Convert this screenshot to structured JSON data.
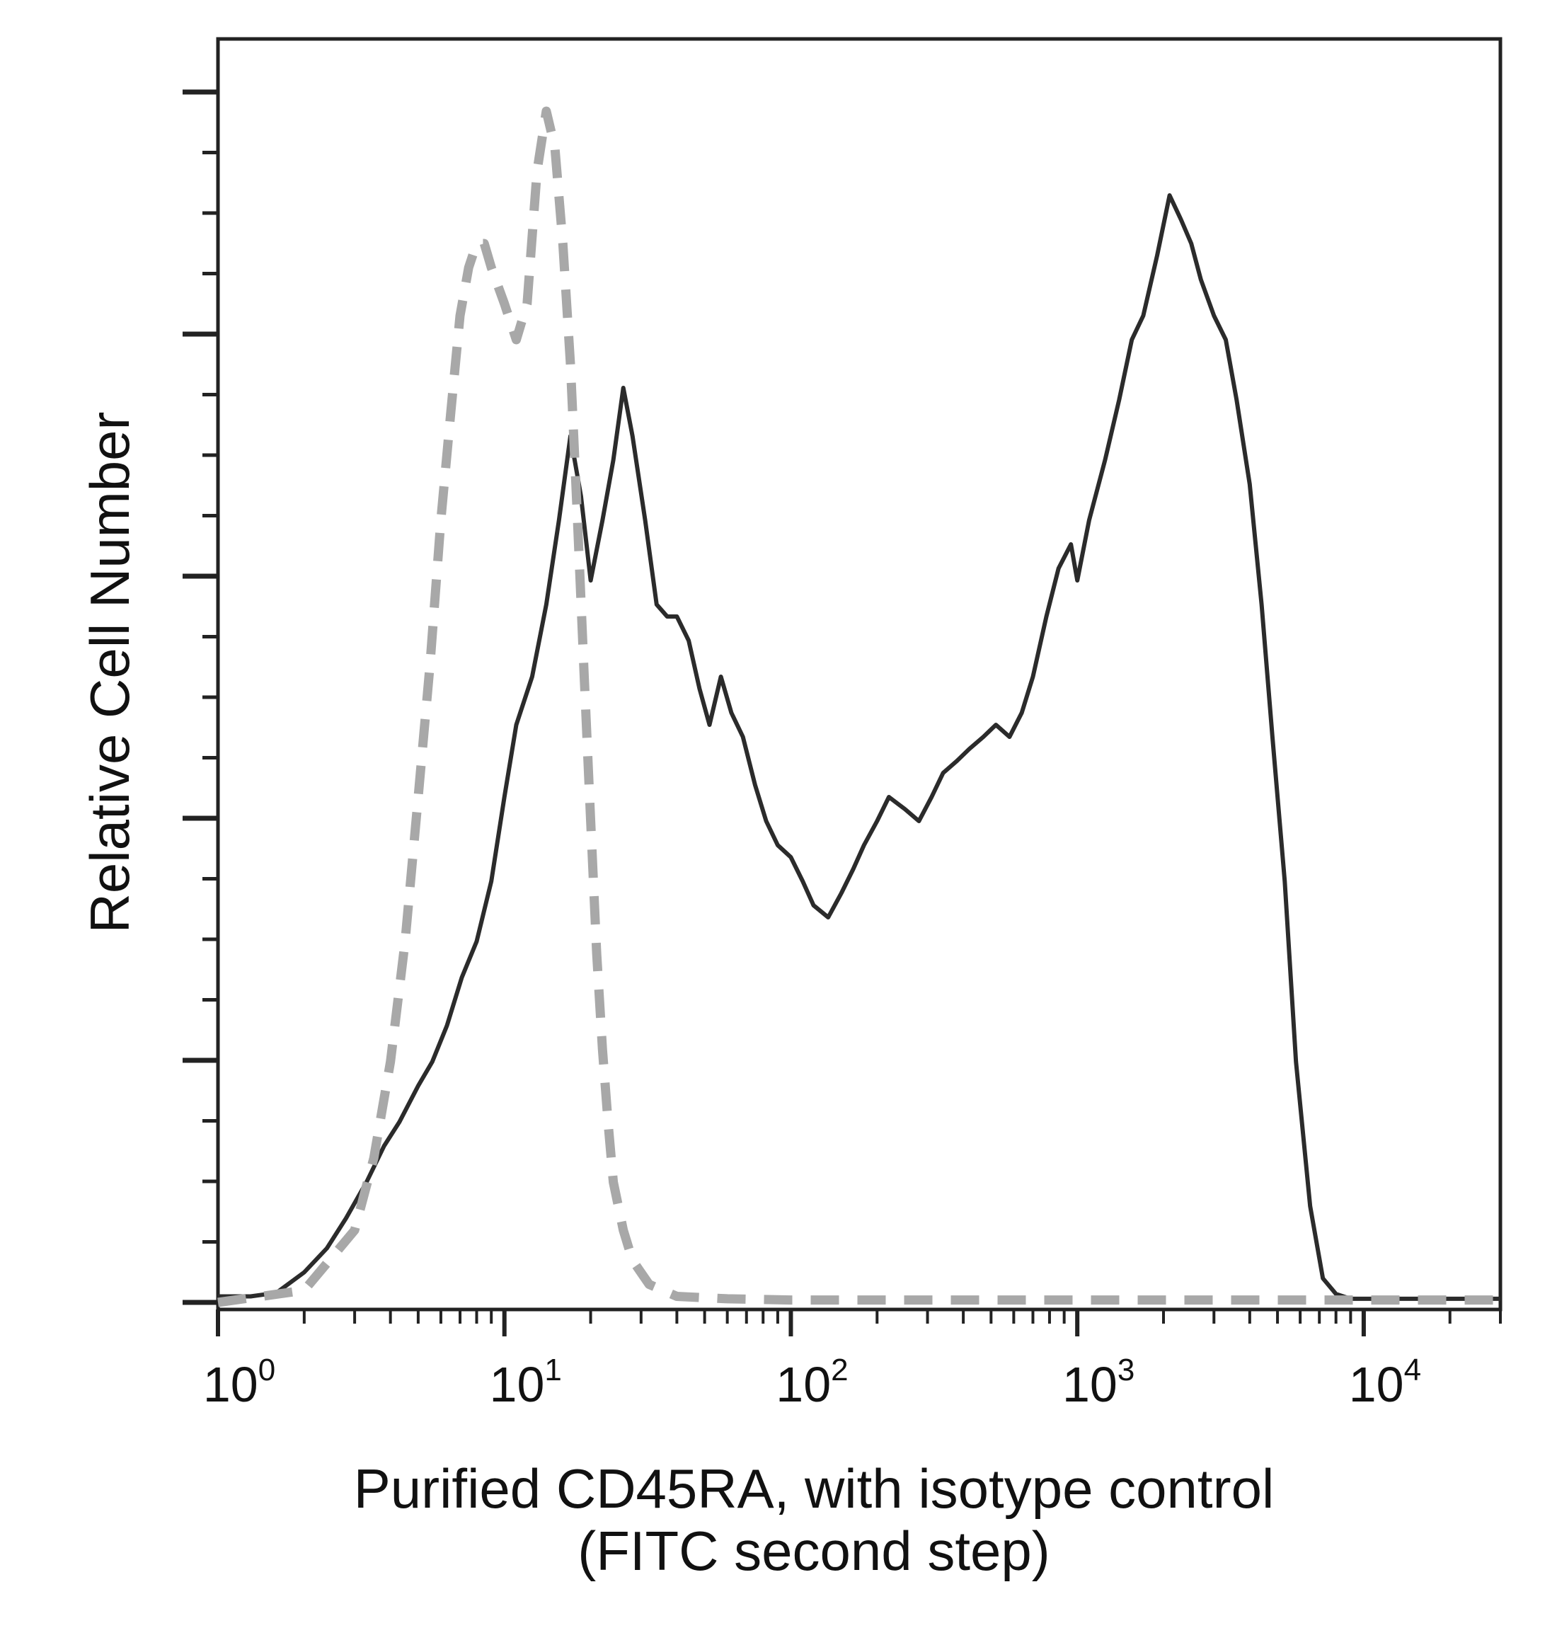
{
  "chart_data": {
    "type": "line",
    "title": "",
    "xlabel_line1": "Purified CD45RA, with isotype control",
    "xlabel_line2": "(FITC second step)",
    "ylabel": "Relative Cell Number",
    "x_scale": "log",
    "xlim": [
      1,
      30000
    ],
    "ylim": [
      0,
      100
    ],
    "x_ticks": [
      {
        "base": "10",
        "exp": "0",
        "value": 1
      },
      {
        "base": "10",
        "exp": "1",
        "value": 10
      },
      {
        "base": "10",
        "exp": "2",
        "value": 100
      },
      {
        "base": "10",
        "exp": "3",
        "value": 1000
      },
      {
        "base": "10",
        "exp": "4",
        "value": 10000
      }
    ],
    "y_tick_labels_shown": false,
    "grid": false,
    "legend": "none",
    "colors": {
      "sample": "#2b2b2b",
      "isotype": "#a8a8a8",
      "axis": "#222222"
    },
    "series": [
      {
        "style": "solid",
        "x": [
          1.0,
          1.3,
          1.6,
          2.0,
          2.4,
          2.8,
          3.3,
          3.8,
          4.3,
          5.0,
          5.6,
          6.3,
          7.1,
          8.0,
          9.0,
          10,
          11,
          12.5,
          14,
          15.5,
          17,
          18.5,
          20,
          22,
          24,
          26,
          28,
          31,
          34,
          37,
          40,
          44,
          48,
          52,
          57,
          62,
          68,
          75,
          82,
          90,
          100,
          110,
          120,
          135,
          150,
          165,
          180,
          200,
          220,
          250,
          280,
          310,
          340,
          380,
          420,
          470,
          520,
          580,
          640,
          700,
          780,
          860,
          950,
          1000,
          1100,
          1250,
          1400,
          1550,
          1700,
          1900,
          2100,
          2300,
          2500,
          2700,
          3000,
          3300,
          3600,
          4000,
          4400,
          4800,
          5300,
          5800,
          6500,
          7200,
          8000,
          9000,
          10000,
          15000,
          22000,
          30000
        ],
        "values": [
          0.5,
          0.5,
          0.8,
          2.5,
          4.5,
          7,
          10,
          13,
          15,
          18,
          20,
          23,
          27,
          30,
          35,
          42,
          48,
          52,
          58,
          65,
          72,
          67,
          60,
          65,
          70,
          76,
          72,
          65,
          58,
          57,
          57,
          55,
          51,
          48,
          52,
          49,
          47,
          43,
          40,
          38,
          37,
          35,
          33,
          32,
          34,
          36,
          38,
          40,
          42,
          41,
          40,
          42,
          44,
          45,
          46,
          47,
          48,
          47,
          49,
          52,
          57,
          61,
          63,
          60,
          65,
          70,
          75,
          80,
          82,
          87,
          92,
          90,
          88,
          85,
          82,
          80,
          75,
          68,
          58,
          47,
          35,
          20,
          8,
          2,
          0.7,
          0.3,
          0.3,
          0.3,
          0.3,
          0.3
        ]
      },
      {
        "style": "dashed",
        "x": [
          1.0,
          2.0,
          3.0,
          3.5,
          4.0,
          4.5,
          5.0,
          5.5,
          6.0,
          6.5,
          7.0,
          7.5,
          8.0,
          8.5,
          9.0,
          10,
          11,
          12,
          13,
          14,
          15,
          16,
          17,
          18,
          19,
          20,
          21,
          22,
          23,
          24,
          26,
          28,
          32,
          40,
          60,
          100,
          1000,
          10000,
          30000
        ],
        "values": [
          0,
          1,
          6,
          12,
          20,
          30,
          42,
          53,
          65,
          74,
          82,
          86,
          88,
          88,
          86,
          83,
          80,
          83,
          94,
          99,
          96,
          88,
          78,
          65,
          52,
          40,
          29,
          21,
          15,
          10,
          6,
          3.5,
          1.5,
          0.5,
          0.3,
          0.2,
          0.2,
          0.2,
          0.2
        ]
      }
    ]
  }
}
